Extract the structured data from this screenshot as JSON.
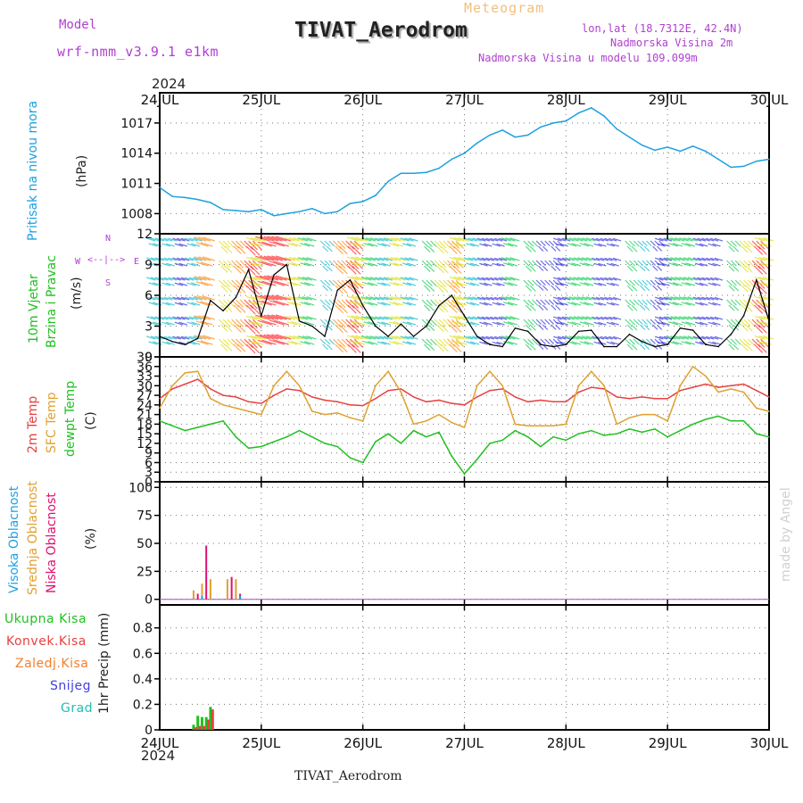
{
  "header": {
    "model_label": "Model",
    "model_name": "wrf-nmm_v3.9.1 e1km",
    "chart_kind": "Meteogram",
    "station": "TIVAT_Aerodrom",
    "lonlat": "lon,lat (18.7312E, 42.4N)",
    "elevation": "Nadmorska Visina 2m",
    "model_elevation": "Nadmorska Visina u modelu 109.099m",
    "year": "2024",
    "footer_station": "TIVAT_Aerodrom",
    "credit": "made by Angel"
  },
  "colors": {
    "pressure": "#1ca0e0",
    "temp2m": "#e84040",
    "sfc_temp": "#e0a030",
    "dewpoint": "#20c020",
    "cloud_high": "#20a0e0",
    "cloud_mid": "#e0a030",
    "cloud_low": "#e01070",
    "precip_total": "#20c020",
    "precip_conv": "#e84040",
    "purple": "#b040d0"
  },
  "compass": {
    "n": "N",
    "s": "S",
    "w": "W",
    "e": "E"
  },
  "chart_data": [
    {
      "type": "line",
      "panel": "pressure",
      "ylabel": "Pritisak na nivou mora",
      "unit": "(hPa)",
      "ylim": [
        1006,
        1020
      ],
      "yticks": [
        1008,
        1011,
        1014,
        1017
      ],
      "xticks": [
        "24JUL",
        "25JUL",
        "26JUL",
        "27JUL",
        "28JUL",
        "29JUL",
        "30JUL"
      ],
      "xlim": [
        0,
        144
      ],
      "grid": true,
      "series": [
        {
          "color": "pressure",
          "x": [
            0,
            3,
            6,
            9,
            12,
            15,
            18,
            21,
            24,
            27,
            30,
            33,
            36,
            39,
            42,
            45,
            48,
            51,
            54,
            57,
            60,
            63,
            66,
            69,
            72,
            75,
            78,
            81,
            84,
            87,
            90,
            93,
            96,
            99,
            102,
            105,
            108,
            111,
            114,
            117,
            120,
            123,
            126,
            129,
            132,
            135,
            138,
            141,
            144
          ],
          "values": [
            1010.6,
            1009.7,
            1009.6,
            1009.4,
            1009.1,
            1008.4,
            1008.3,
            1008.2,
            1008.4,
            1007.8,
            1008.0,
            1008.2,
            1008.5,
            1008.0,
            1008.2,
            1009.0,
            1009.2,
            1009.8,
            1011.2,
            1012.0,
            1012.0,
            1012.1,
            1012.5,
            1013.4,
            1014.0,
            1015.0,
            1015.8,
            1016.3,
            1015.6,
            1015.8,
            1016.6,
            1017.0,
            1017.2,
            1018.0,
            1018.5,
            1017.7,
            1016.4,
            1015.6,
            1014.8,
            1014.3,
            1014.6,
            1014.2,
            1014.7,
            1014.2,
            1013.4,
            1012.6,
            1012.7,
            1013.2,
            1013.4
          ]
        }
      ]
    },
    {
      "type": "line",
      "panel": "wind",
      "ylabel": "10m Vjetar",
      "ylabel2": "Brzina i Pravac",
      "unit": "(m/s)",
      "ylim": [
        0,
        12
      ],
      "yticks": [
        0,
        3,
        6,
        9,
        12
      ],
      "xlim": [
        0,
        144
      ],
      "grid": true,
      "series": [
        {
          "name": "speed",
          "x": [
            0,
            3,
            6,
            9,
            12,
            15,
            18,
            21,
            24,
            27,
            30,
            33,
            36,
            39,
            42,
            45,
            48,
            51,
            54,
            57,
            60,
            63,
            66,
            69,
            72,
            75,
            78,
            81,
            84,
            87,
            90,
            93,
            96,
            99,
            102,
            105,
            108,
            111,
            114,
            117,
            120,
            123,
            126,
            129,
            132,
            135,
            138,
            141,
            144
          ],
          "values": [
            2.0,
            1.5,
            1.2,
            1.8,
            5.5,
            4.5,
            5.8,
            8.5,
            4.0,
            8.0,
            9.0,
            3.5,
            3.0,
            2.0,
            6.5,
            7.5,
            5.0,
            3.0,
            2.0,
            3.2,
            2.0,
            3.0,
            5.0,
            6.0,
            4.0,
            2.0,
            1.2,
            1.0,
            2.8,
            2.5,
            1.2,
            1.0,
            1.2,
            2.5,
            2.6,
            1.0,
            1.0,
            2.2,
            1.5,
            1.0,
            1.2,
            2.8,
            2.6,
            1.2,
            1.0,
            2.2,
            4.0,
            7.5,
            3.5
          ]
        }
      ]
    },
    {
      "type": "line",
      "panel": "temperature",
      "ylabel": "2m Temp",
      "ylabel2": "SFC Temp",
      "ylabel3": "dewpt Temp",
      "unit": "(C)",
      "ylim": [
        0,
        39
      ],
      "yticks": [
        0,
        3,
        6,
        9,
        12,
        15,
        18,
        21,
        24,
        27,
        30,
        33,
        36,
        39
      ],
      "xlim": [
        0,
        144
      ],
      "grid": true,
      "series": [
        {
          "color": "temp2m",
          "x": [
            0,
            3,
            6,
            9,
            12,
            15,
            18,
            21,
            24,
            27,
            30,
            33,
            36,
            39,
            42,
            45,
            48,
            51,
            54,
            57,
            60,
            63,
            66,
            69,
            72,
            75,
            78,
            81,
            84,
            87,
            90,
            93,
            96,
            99,
            102,
            105,
            108,
            111,
            114,
            117,
            120,
            123,
            126,
            129,
            132,
            135,
            138,
            141,
            144
          ],
          "values": [
            26.0,
            29.0,
            30.5,
            32.0,
            29.0,
            27.0,
            26.5,
            25.0,
            24.5,
            27.0,
            29.0,
            28.5,
            26.5,
            25.5,
            25.0,
            24.0,
            23.8,
            26.0,
            28.5,
            29.0,
            26.5,
            25.0,
            25.5,
            24.5,
            24.0,
            26.5,
            28.5,
            29.0,
            26.5,
            25.0,
            25.5,
            25.0,
            25.0,
            28.0,
            29.5,
            29.0,
            26.5,
            26.0,
            26.5,
            26.0,
            26.0,
            28.5,
            29.5,
            30.5,
            29.5,
            30.0,
            30.5,
            28.5,
            26.5
          ]
        },
        {
          "color": "sfc_temp",
          "x": [
            0,
            3,
            6,
            9,
            12,
            15,
            18,
            21,
            24,
            27,
            30,
            33,
            36,
            39,
            42,
            45,
            48,
            51,
            54,
            57,
            60,
            63,
            66,
            69,
            72,
            75,
            78,
            81,
            84,
            87,
            90,
            93,
            96,
            99,
            102,
            105,
            108,
            111,
            114,
            117,
            120,
            123,
            126,
            129,
            132,
            135,
            138,
            141,
            144
          ],
          "values": [
            23.0,
            30.0,
            34.0,
            34.5,
            26.0,
            24.0,
            23.0,
            22.0,
            21.0,
            30.0,
            34.5,
            30.0,
            22.0,
            21.0,
            21.5,
            20.0,
            19.0,
            30.0,
            34.5,
            28.0,
            18.0,
            19.0,
            21.0,
            18.5,
            17.0,
            30.0,
            34.5,
            30.0,
            18.0,
            17.5,
            17.5,
            17.5,
            18.0,
            30.0,
            34.5,
            30.0,
            18.0,
            20.0,
            21.0,
            21.0,
            19.0,
            30.0,
            36.0,
            33.0,
            28.0,
            29.0,
            28.0,
            23.0,
            22.0
          ]
        },
        {
          "color": "dewpoint",
          "x": [
            0,
            3,
            6,
            9,
            12,
            15,
            18,
            21,
            24,
            27,
            30,
            33,
            36,
            39,
            42,
            45,
            48,
            51,
            54,
            57,
            60,
            63,
            66,
            69,
            72,
            75,
            78,
            81,
            84,
            87,
            90,
            93,
            96,
            99,
            102,
            105,
            108,
            111,
            114,
            117,
            120,
            123,
            126,
            129,
            132,
            135,
            138,
            141,
            144
          ],
          "values": [
            19.0,
            17.5,
            16.0,
            17.0,
            18.0,
            19.0,
            14.0,
            10.5,
            11.0,
            12.5,
            14.0,
            16.0,
            14.0,
            12.0,
            11.0,
            7.5,
            6.0,
            12.5,
            15.0,
            12.0,
            16.0,
            14.0,
            15.5,
            8.0,
            2.5,
            7.0,
            12.0,
            13.0,
            16.0,
            14.0,
            11.0,
            14.0,
            13.0,
            15.0,
            16.0,
            14.5,
            15.0,
            16.5,
            15.5,
            16.5,
            14.0,
            16.0,
            18.0,
            19.5,
            20.5,
            19.0,
            19.0,
            15.0,
            14.0
          ]
        }
      ]
    },
    {
      "type": "bar",
      "panel": "cloud",
      "ylabel": "Visoka Oblacnost",
      "ylabel2": "Srednja Oblacnost",
      "ylabel3": "Niska Oblacnost",
      "unit": "(%)",
      "ylim": [
        -5,
        105
      ],
      "yticks": [
        0,
        25,
        50,
        75,
        100
      ],
      "xlim": [
        0,
        144
      ],
      "grid": true,
      "series": [
        {
          "color": "cloud_mid",
          "x": [
            8,
            10,
            12,
            16,
            18
          ],
          "values": [
            8,
            14,
            18,
            18,
            18
          ]
        },
        {
          "color": "cloud_low",
          "x": [
            9,
            11,
            17,
            19
          ],
          "values": [
            5,
            48,
            20,
            5
          ]
        },
        {
          "color": "cloud_high",
          "x": [
            10,
            19
          ],
          "values": [
            3,
            3
          ]
        }
      ]
    },
    {
      "type": "bar",
      "panel": "precip",
      "ylabel": "1hr Precip (mm)",
      "legend": [
        "Ukupna Kisa",
        "Konvek.Kisa",
        "Zaledj.Kisa",
        "Snijeg",
        "Grad"
      ],
      "ylim": [
        0,
        0.98
      ],
      "yticks": [
        0,
        0.2,
        0.4,
        0.6,
        0.8
      ],
      "xlim": [
        0,
        144
      ],
      "grid": true,
      "series": [
        {
          "color": "precip_total",
          "x": [
            8,
            9,
            10,
            11,
            12
          ],
          "values": [
            0.04,
            0.11,
            0.1,
            0.1,
            0.18
          ]
        },
        {
          "color": "precip_conv",
          "x": [
            8.5,
            9.5,
            10.5,
            11.5,
            12.5
          ],
          "values": [
            0.02,
            0.03,
            0.03,
            0.08,
            0.16
          ]
        }
      ]
    }
  ]
}
